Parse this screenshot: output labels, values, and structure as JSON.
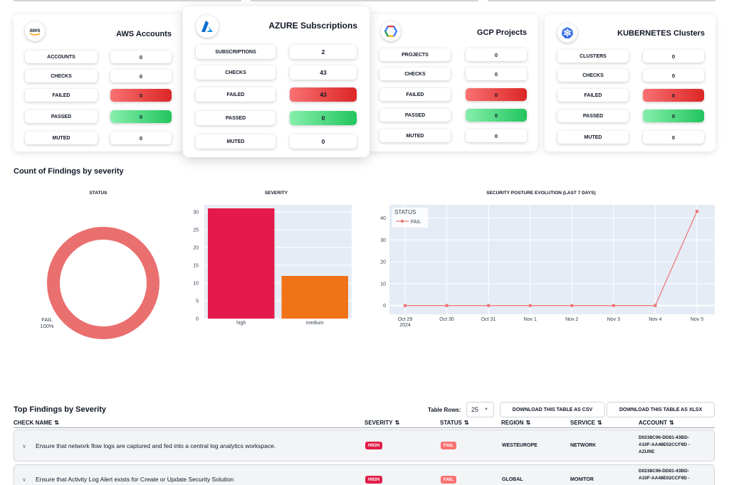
{
  "cards": {
    "aws": {
      "logo": "aws-logo",
      "title": "AWS Accounts",
      "stats": [
        {
          "label": "ACCOUNTS",
          "value": "0",
          "kind": "plain"
        },
        {
          "label": "CHECKS",
          "value": "0",
          "kind": "plain"
        },
        {
          "label": "FAILED",
          "value": "0",
          "kind": "failed"
        },
        {
          "label": "PASSED",
          "value": "0",
          "kind": "passed"
        },
        {
          "label": "MUTED",
          "value": "0",
          "kind": "plain"
        }
      ]
    },
    "azure": {
      "logo": "azure-logo",
      "title": "AZURE Subscriptions",
      "stats": [
        {
          "label": "SUBSCRIPTIONS",
          "value": "2",
          "kind": "plain"
        },
        {
          "label": "CHECKS",
          "value": "43",
          "kind": "plain"
        },
        {
          "label": "FAILED",
          "value": "43",
          "kind": "failed"
        },
        {
          "label": "PASSED",
          "value": "0",
          "kind": "passed"
        },
        {
          "label": "MUTED",
          "value": "0",
          "kind": "plain"
        }
      ]
    },
    "gcp": {
      "logo": "gcp-logo",
      "title": "GCP Projects",
      "stats": [
        {
          "label": "PROJECTS",
          "value": "0",
          "kind": "plain"
        },
        {
          "label": "CHECKS",
          "value": "0",
          "kind": "plain"
        },
        {
          "label": "FAILED",
          "value": "0",
          "kind": "failed"
        },
        {
          "label": "PASSED",
          "value": "0",
          "kind": "passed"
        },
        {
          "label": "MUTED",
          "value": "0",
          "kind": "plain"
        }
      ]
    },
    "k8s": {
      "logo": "kubernetes-logo",
      "title": "KUBERNETES Clusters",
      "stats": [
        {
          "label": "CLUSTERS",
          "value": "0",
          "kind": "plain"
        },
        {
          "label": "CHECKS",
          "value": "0",
          "kind": "plain"
        },
        {
          "label": "FAILED",
          "value": "0",
          "kind": "failed"
        },
        {
          "label": "PASSED",
          "value": "0",
          "kind": "passed"
        },
        {
          "label": "MUTED",
          "value": "0",
          "kind": "plain"
        }
      ]
    }
  },
  "findings_section": {
    "title": "Count of Findings by severity"
  },
  "chart_data": [
    {
      "type": "pie",
      "title": "STATUS",
      "categories": [
        "FAIL"
      ],
      "values": [
        100
      ],
      "data_labels": [
        "FAIL\n100%"
      ],
      "colors": [
        "#ea6f6f"
      ]
    },
    {
      "type": "bar",
      "title": "SEVERITY",
      "categories": [
        "high",
        "medium"
      ],
      "values": [
        31,
        12
      ],
      "colors": [
        "#e31a4a",
        "#f07318"
      ],
      "ylim": [
        0,
        32
      ],
      "yticks": [
        0,
        5,
        10,
        15,
        20,
        25,
        30
      ],
      "grid": true
    },
    {
      "type": "line",
      "title": "SECURITY POSTURE EVOLUTION (LAST 7 DAYS)",
      "x": [
        "Oct 29\n2024",
        "Oct 30",
        "Oct 31",
        "Nov 1",
        "Nov 2",
        "Nov 3",
        "Nov 4",
        "Nov 5"
      ],
      "series": [
        {
          "name": "FAIL",
          "values": [
            0,
            0,
            0,
            0,
            0,
            0,
            0,
            43
          ],
          "color": "#ec7b7b"
        }
      ],
      "legend_title": "STATUS",
      "legend_position": "top-left",
      "ylim": [
        -4,
        46
      ],
      "yticks": [
        0,
        10,
        20,
        30,
        40
      ],
      "grid": true
    }
  ],
  "table": {
    "title": "Top Findings by Severity",
    "rows_label": "Table Rows:",
    "rows_value": "25",
    "csv_button": "DOWNLOAD THIS TABLE AS CSV",
    "xlsx_button": "DOWNLOAD THIS TABLE AS XLSX",
    "columns": [
      "CHECK NAME",
      "SEVERITY",
      "STATUS",
      "REGION",
      "SERVICE",
      "ACCOUNT"
    ],
    "rows": [
      {
        "check": "Ensure that network flow logs are captured and fed into a central log analytics workspace.",
        "severity": "HIGH",
        "status": "FAIL",
        "region": "WESTEUROPE",
        "service": "NETWORK",
        "account_l1": "D0238C96-DD81-43BD-",
        "account_l2": "A10F-AA48E02CCF9D -",
        "account_l3": "AZURE"
      },
      {
        "check": "Ensure that Activity Log Alert exists for Create or Update Security Solution",
        "severity": "HIGH",
        "status": "FAIL",
        "region": "GLOBAL",
        "service": "MONITOR",
        "account_l1": "D0238C96-DD81-43BD-",
        "account_l2": "A10F-AA48E02CCF9D -",
        "account_l3": ""
      }
    ]
  },
  "icons": {
    "sort": "sort-arrows-icon",
    "chevron": "chevron-down-icon",
    "select": "dropdown-arrow-icon"
  }
}
